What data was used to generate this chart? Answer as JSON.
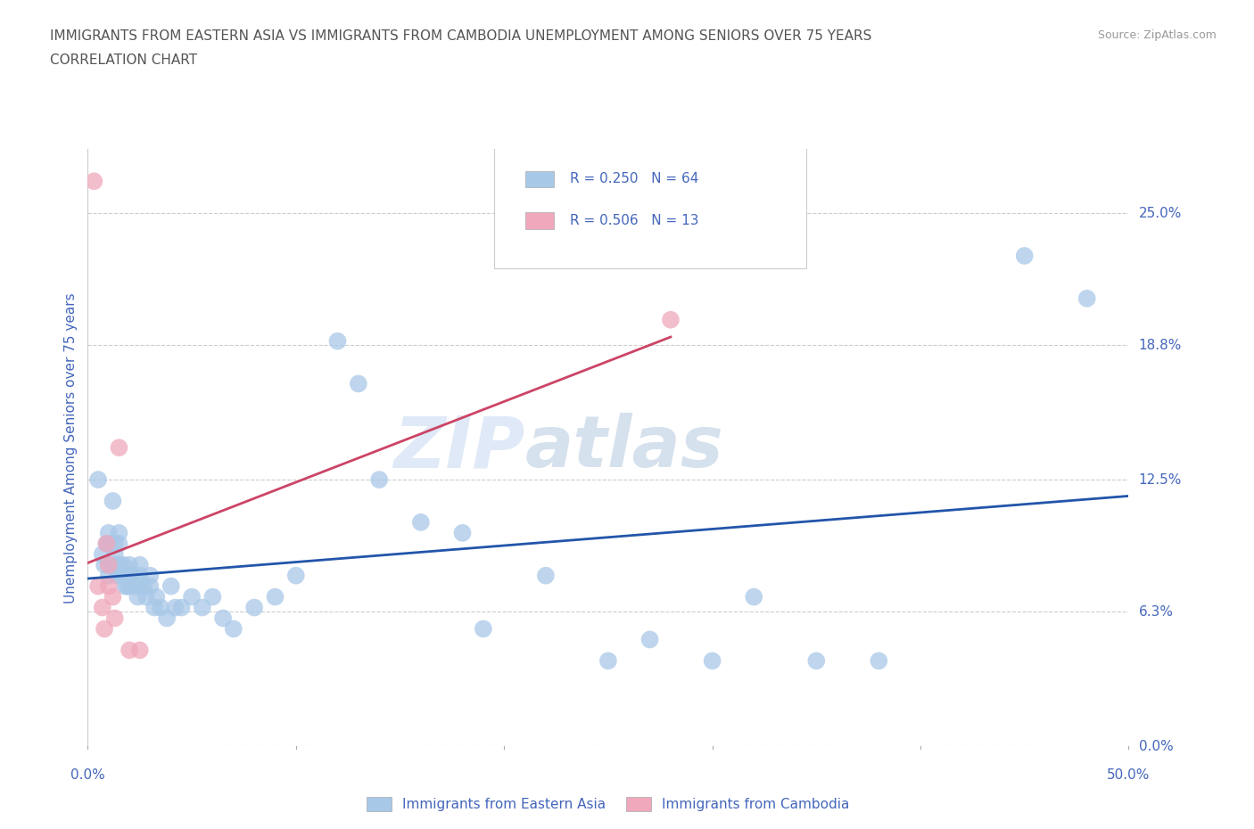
{
  "title_line1": "IMMIGRANTS FROM EASTERN ASIA VS IMMIGRANTS FROM CAMBODIA UNEMPLOYMENT AMONG SENIORS OVER 75 YEARS",
  "title_line2": "CORRELATION CHART",
  "source": "Source: ZipAtlas.com",
  "ylabel": "Unemployment Among Seniors over 75 years",
  "xmin": 0.0,
  "xmax": 0.5,
  "ymin": 0.0,
  "ymax": 0.28,
  "yticks": [
    0.0,
    0.063,
    0.125,
    0.188,
    0.25
  ],
  "ytick_labels": [
    "0.0%",
    "6.3%",
    "12.5%",
    "18.8%",
    "25.0%"
  ],
  "xtick_positions": [
    0.0,
    0.1,
    0.2,
    0.3,
    0.4,
    0.5
  ],
  "xtick_labels": [
    "0.0%",
    "",
    "",
    "",
    "",
    "50.0%"
  ],
  "legend_label1": "Immigrants from Eastern Asia",
  "legend_label2": "Immigrants from Cambodia",
  "color_eastern_asia": "#a8c8e8",
  "color_cambodia": "#f0a8bc",
  "color_line_eastern_asia": "#2255aa",
  "color_line_cambodia": "#cc4466",
  "watermark_part1": "ZIP",
  "watermark_part2": "atlas",
  "eastern_asia_x": [
    0.005,
    0.007,
    0.008,
    0.009,
    0.01,
    0.01,
    0.01,
    0.01,
    0.012,
    0.013,
    0.013,
    0.013,
    0.014,
    0.015,
    0.015,
    0.015,
    0.016,
    0.017,
    0.018,
    0.018,
    0.019,
    0.02,
    0.02,
    0.02,
    0.022,
    0.023,
    0.024,
    0.025,
    0.025,
    0.025,
    0.027,
    0.028,
    0.03,
    0.03,
    0.032,
    0.033,
    0.035,
    0.038,
    0.04,
    0.042,
    0.045,
    0.05,
    0.055,
    0.06,
    0.065,
    0.07,
    0.08,
    0.09,
    0.1,
    0.12,
    0.13,
    0.14,
    0.16,
    0.18,
    0.19,
    0.22,
    0.25,
    0.27,
    0.3,
    0.32,
    0.35,
    0.38,
    0.45,
    0.48
  ],
  "eastern_asia_y": [
    0.125,
    0.09,
    0.085,
    0.095,
    0.1,
    0.095,
    0.085,
    0.08,
    0.115,
    0.095,
    0.09,
    0.085,
    0.08,
    0.1,
    0.095,
    0.085,
    0.08,
    0.085,
    0.075,
    0.08,
    0.075,
    0.085,
    0.08,
    0.075,
    0.08,
    0.075,
    0.07,
    0.085,
    0.08,
    0.075,
    0.075,
    0.07,
    0.08,
    0.075,
    0.065,
    0.07,
    0.065,
    0.06,
    0.075,
    0.065,
    0.065,
    0.07,
    0.065,
    0.07,
    0.06,
    0.055,
    0.065,
    0.07,
    0.08,
    0.19,
    0.17,
    0.125,
    0.105,
    0.1,
    0.055,
    0.08,
    0.04,
    0.05,
    0.04,
    0.07,
    0.04,
    0.04,
    0.23,
    0.21
  ],
  "cambodia_x": [
    0.003,
    0.005,
    0.007,
    0.008,
    0.009,
    0.01,
    0.01,
    0.012,
    0.013,
    0.015,
    0.02,
    0.025,
    0.28
  ],
  "cambodia_y": [
    0.265,
    0.075,
    0.065,
    0.055,
    0.095,
    0.085,
    0.075,
    0.07,
    0.06,
    0.14,
    0.045,
    0.045,
    0.2
  ],
  "background_color": "#ffffff",
  "grid_color": "#cccccc",
  "title_color": "#555555",
  "axis_color": "#4466bb",
  "source_color": "#999999"
}
